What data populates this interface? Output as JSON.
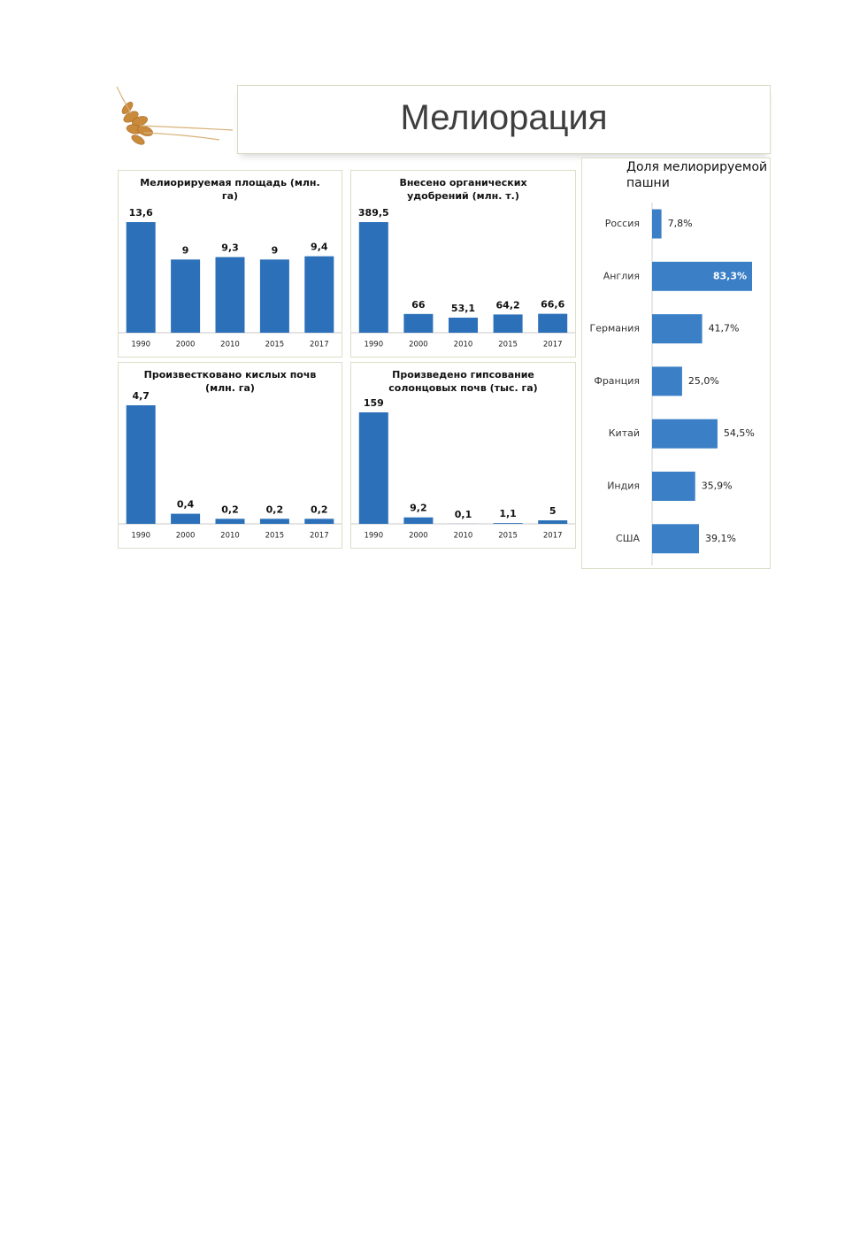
{
  "header": {
    "title": "Мелиорация"
  },
  "chart_data": [
    {
      "type": "bar",
      "title": "Мелиорируемая площадь (млн. га)",
      "categories": [
        "1990",
        "2000",
        "2010",
        "2015",
        "2017"
      ],
      "values": [
        13.6,
        9,
        9.3,
        9,
        9.4
      ],
      "value_labels": [
        "13,6",
        "9",
        "9,3",
        "9",
        "9,4"
      ],
      "color": "#2b70b8"
    },
    {
      "type": "bar",
      "title": "Внесено органических удобрений (млн. т.)",
      "categories": [
        "1990",
        "2000",
        "2010",
        "2015",
        "2017"
      ],
      "values": [
        389.5,
        66,
        53.1,
        64.2,
        66.6
      ],
      "value_labels": [
        "389,5",
        "66",
        "53,1",
        "64,2",
        "66,6"
      ],
      "color": "#2b70b8"
    },
    {
      "type": "bar",
      "title": "Произвестковано кислых почв (млн. га)",
      "categories": [
        "1990",
        "2000",
        "2010",
        "2015",
        "2017"
      ],
      "values": [
        4.7,
        0.4,
        0.2,
        0.2,
        0.2
      ],
      "value_labels": [
        "4,7",
        "0,4",
        "0,2",
        "0,2",
        "0,2"
      ],
      "color": "#2b70b8"
    },
    {
      "type": "bar",
      "title": "Произведено гипсование солонцовых почв (тыс. га)",
      "categories": [
        "1990",
        "2000",
        "2010",
        "2015",
        "2017"
      ],
      "values": [
        159,
        9.2,
        0.1,
        1.1,
        5
      ],
      "value_labels": [
        "159",
        "9,2",
        "0,1",
        "1,1",
        "5"
      ],
      "color": "#2b70b8"
    },
    {
      "type": "barh",
      "title": "Доля мелиорируемой пашни",
      "categories": [
        "Россия",
        "Англия",
        "Германия",
        "Франция",
        "Китай",
        "Индия",
        "США"
      ],
      "values": [
        7.8,
        83.3,
        41.7,
        25.0,
        54.5,
        35.9,
        39.1
      ],
      "value_labels": [
        "7,8%",
        "83,3%",
        "41,7%",
        "25,0%",
        "54,5%",
        "35,9%",
        "39,1%"
      ],
      "color": "#3b7fc6"
    }
  ]
}
